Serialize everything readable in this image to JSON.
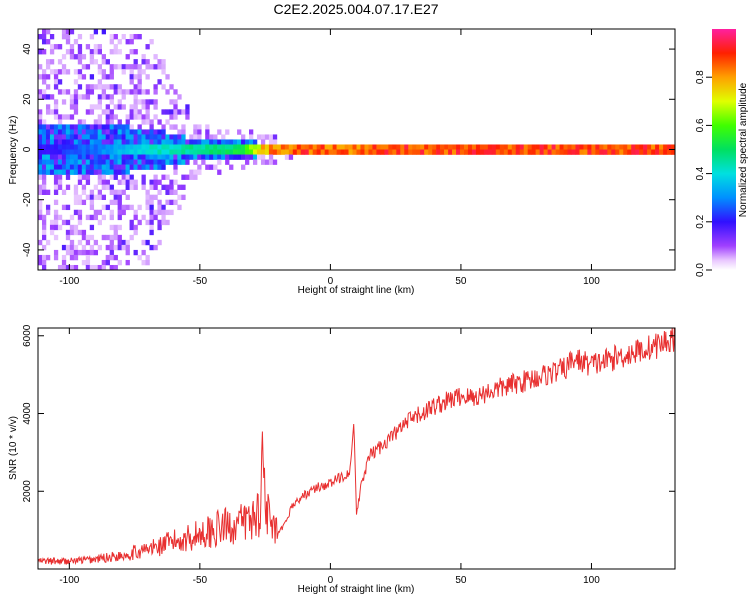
{
  "figure": {
    "title": "C2E2.2025.004.07.17.E27"
  },
  "colors": {
    "line": "#e83030",
    "frame": "#000000"
  },
  "chart_data": [
    {
      "type": "heatmap",
      "title": "C2E2.2025.004.07.17.E27",
      "xlabel": "Height of straight line (km)",
      "ylabel": "Frequency (Hz)",
      "xlim": [
        -112,
        132
      ],
      "ylim": [
        -48,
        48
      ],
      "x_ticks": [
        -100,
        -50,
        0,
        50,
        100
      ],
      "y_ticks": [
        -40,
        -20,
        0,
        20,
        40
      ],
      "grid": false,
      "colorbar": {
        "label": "Normalized spectral amplitude",
        "range": [
          0,
          1
        ],
        "ticks": [
          0.0,
          0.2,
          0.4,
          0.6,
          0.8
        ],
        "colormap": "rainbow (white-violet-blue-cyan-green-yellow-orange-red-magenta)"
      },
      "description_points": {
        "x": [
          -110,
          -90,
          -70,
          -50,
          -35,
          -25,
          -10,
          0,
          8,
          20,
          50,
          80,
          100,
          130
        ],
        "peak_frequency_hz": [
          0,
          0,
          0,
          0,
          0,
          0,
          0,
          0,
          0,
          0,
          0,
          0,
          0,
          0
        ],
        "peak_amplitude": [
          0.2,
          0.3,
          0.45,
          0.5,
          0.55,
          0.85,
          0.95,
          0.9,
          0.9,
          0.95,
          0.95,
          0.95,
          0.95,
          0.95
        ],
        "noise_spread_hz": [
          48,
          48,
          46,
          10,
          8,
          6,
          3,
          2,
          3,
          1,
          1,
          1,
          2,
          2
        ]
      }
    },
    {
      "type": "line",
      "xlabel": "Height of straight line (km)",
      "ylabel": "SNR (10 * v/v)",
      "xlim": [
        -112,
        132
      ],
      "ylim": [
        0,
        6200
      ],
      "x_ticks": [
        -100,
        -50,
        0,
        50,
        100
      ],
      "y_ticks": [
        2000,
        4000,
        6000
      ],
      "grid": false,
      "series": [
        {
          "x": [
            -112,
            -100,
            -90,
            -80,
            -70,
            -60,
            -50,
            -45,
            -40,
            -35,
            -30,
            -27,
            -26,
            -24,
            -22,
            -20,
            -17,
            -15,
            -10,
            -5,
            0,
            5,
            7,
            8,
            9,
            10,
            12,
            15,
            20,
            25,
            30,
            40,
            50,
            55,
            60,
            70,
            80,
            90,
            93,
            96,
            100,
            110,
            120,
            125,
            132
          ],
          "y": [
            200,
            200,
            250,
            350,
            500,
            700,
            900,
            1000,
            1100,
            1150,
            1300,
            1500,
            2900,
            1400,
            1000,
            900,
            1200,
            1600,
            1900,
            2100,
            2200,
            2400,
            2500,
            2700,
            3800,
            1400,
            2200,
            2900,
            3200,
            3500,
            3800,
            4200,
            4450,
            4400,
            4550,
            4750,
            4950,
            5150,
            5400,
            5350,
            5250,
            5450,
            5650,
            5750,
            5950
          ]
        }
      ]
    }
  ]
}
